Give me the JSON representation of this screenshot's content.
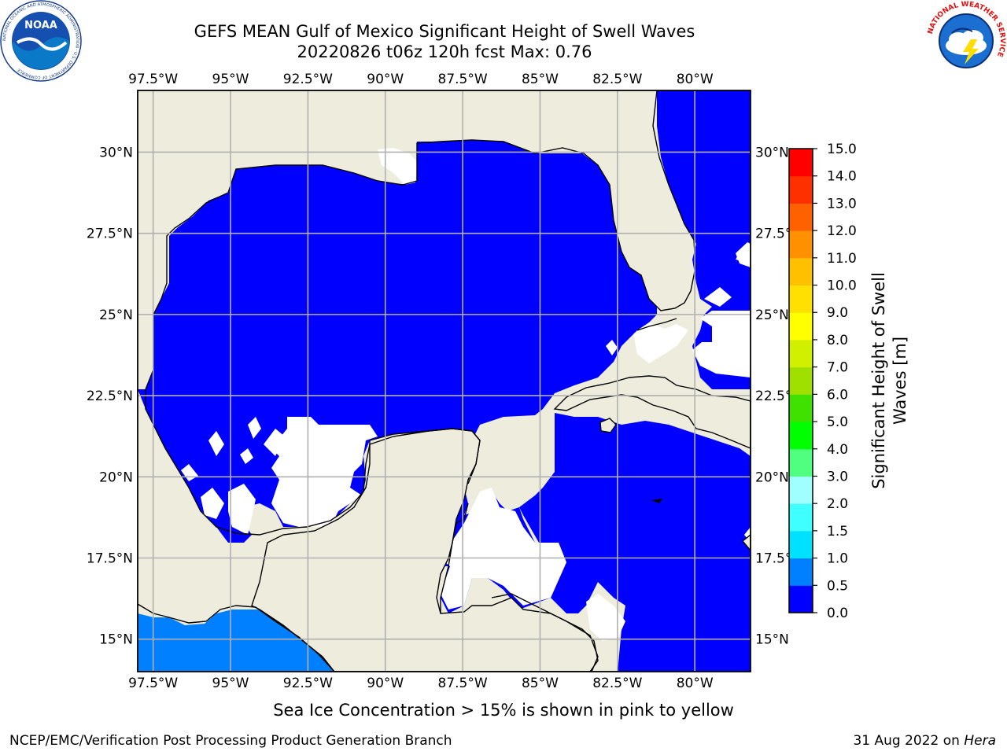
{
  "header": {
    "title_line_1": "GEFS MEAN Gulf of Mexico Significant Height of Swell Waves",
    "title_line_2": "20220826 t06z 120h fcst   Max: 0.76"
  },
  "map": {
    "lon_labels": [
      "97.5°W",
      "95°W",
      "92.5°W",
      "90°W",
      "87.5°W",
      "85°W",
      "82.5°W",
      "80°W"
    ],
    "lon_values": [
      -97.5,
      -95,
      -92.5,
      -90,
      -87.5,
      -85,
      -82.5,
      -80
    ],
    "lat_labels": [
      "30°N",
      "27.5°N",
      "25°N",
      "22.5°N",
      "20°N",
      "17.5°N",
      "15°N"
    ],
    "lat_values": [
      30,
      27.5,
      25,
      22.5,
      20,
      17.5,
      15
    ],
    "lon_range": [
      -98,
      -78.2
    ],
    "lat_range": [
      14,
      31.9
    ],
    "colors": {
      "land": "#eeeddd",
      "ocean_low": "#0000ff",
      "ocean_mid": "#0080ff",
      "grid": "#b0b0b0",
      "no_data": "#ffffff"
    }
  },
  "colorbar": {
    "label_line_1": "Significant Height of Swell",
    "label_line_2": "Waves [m]",
    "tick_labels": [
      "0.0",
      "0.5",
      "1.0",
      "1.5",
      "2.0",
      "3.0",
      "4.0",
      "5.0",
      "6.0",
      "7.0",
      "8.0",
      "9.0",
      "10.0",
      "11.0",
      "12.0",
      "13.0",
      "14.0",
      "15.0"
    ],
    "colors": [
      "#0000ff",
      "#0080ff",
      "#00e0ff",
      "#40ffff",
      "#a0ffff",
      "#50ff80",
      "#00ff00",
      "#40e000",
      "#a0e000",
      "#d0f000",
      "#ffff00",
      "#ffe000",
      "#ffc000",
      "#ff9000",
      "#ff6000",
      "#ff3000",
      "#ff0000"
    ]
  },
  "footnote": "Sea Ice Concentration > 15% is shown in pink to yellow",
  "credits": {
    "left": "NCEP/EMC/Verification Post Processing Product Generation Branch",
    "right_date": "31 Aug 2022 on",
    "right_host": "Hera"
  },
  "logos": {
    "noaa_left": {
      "badge_text": "NOAA",
      "ring_text": "NATIONAL OCEANIC AND ATMOSPHERIC ADMINISTRATION · U.S. DEPARTMENT OF COMMERCE"
    },
    "nws_right": {
      "ring_text": "NATIONAL WEATHER SERVICE"
    }
  }
}
